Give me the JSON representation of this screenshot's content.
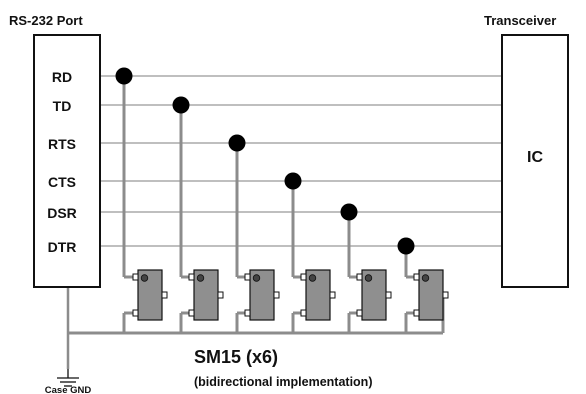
{
  "rs232_title": "RS-232 Port",
  "transceiver_title": "Transceiver",
  "ic_label": "IC",
  "signals": [
    "RD",
    "TD",
    "RTS",
    "CTS",
    "DSR",
    "DTR"
  ],
  "device_title": "SM15 (x6)",
  "device_subtitle": "(bidirectional implementation)",
  "ground_label": "Case GND",
  "colors": {
    "signal_line": "#aaaaaa",
    "bus_line": "#8c8c8c",
    "device_fill": "#8f8f8f",
    "outline": "#111111"
  }
}
